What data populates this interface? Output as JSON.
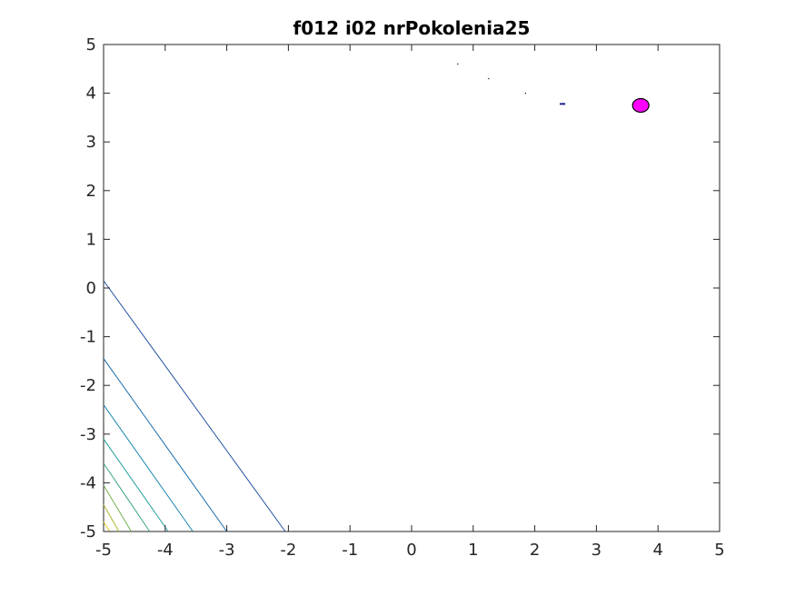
{
  "chart_data": {
    "type": "contour",
    "title": "f012 i02 nrPokolenia25",
    "xlabel": "",
    "ylabel": "",
    "xlim": [
      -5,
      5
    ],
    "ylim": [
      -5,
      5
    ],
    "xticks": [
      "-5",
      "-4",
      "-3",
      "-2",
      "-1",
      "0",
      "1",
      "2",
      "3",
      "4",
      "5"
    ],
    "yticks": [
      "5",
      "4",
      "3",
      "2",
      "1",
      "0",
      "-1",
      "-2",
      "-3",
      "-4",
      "-5"
    ],
    "grid": false,
    "box": true,
    "contour_lines": [
      {
        "color": "#1f4f9e",
        "points": [
          [
            -5,
            0.15
          ],
          [
            -2.05,
            -5
          ]
        ]
      },
      {
        "color": "#1669a8",
        "points": [
          [
            -5,
            -1.45
          ],
          [
            -3.0,
            -5
          ]
        ]
      },
      {
        "color": "#1a85ad",
        "points": [
          [
            -5,
            -2.4
          ],
          [
            -3.55,
            -5
          ]
        ]
      },
      {
        "color": "#1f9e9a",
        "points": [
          [
            -5,
            -3.1
          ],
          [
            -3.95,
            -5
          ]
        ]
      },
      {
        "color": "#3aa679",
        "points": [
          [
            -5,
            -3.6
          ],
          [
            -4.25,
            -5
          ]
        ]
      },
      {
        "color": "#6fb04d",
        "points": [
          [
            -5,
            -4.05
          ],
          [
            -4.55,
            -5
          ]
        ]
      },
      {
        "color": "#b0b833",
        "points": [
          [
            -5,
            -4.45
          ],
          [
            -4.75,
            -5
          ]
        ]
      },
      {
        "color": "#e3c81f",
        "points": [
          [
            -5,
            -4.8
          ],
          [
            -4.9,
            -5
          ]
        ]
      }
    ],
    "population_points": [
      {
        "x": 0.75,
        "y": 4.6,
        "color": "#000000"
      },
      {
        "x": 1.25,
        "y": 4.3,
        "color": "#000000"
      },
      {
        "x": 1.85,
        "y": 4.0,
        "color": "#000000"
      }
    ],
    "small_marker": {
      "x": 2.45,
      "y": 3.78,
      "color": "#1a1a8c"
    },
    "best_point": {
      "x": 3.72,
      "y": 3.75,
      "color": "#ff00ff",
      "edge": "#000000"
    }
  }
}
